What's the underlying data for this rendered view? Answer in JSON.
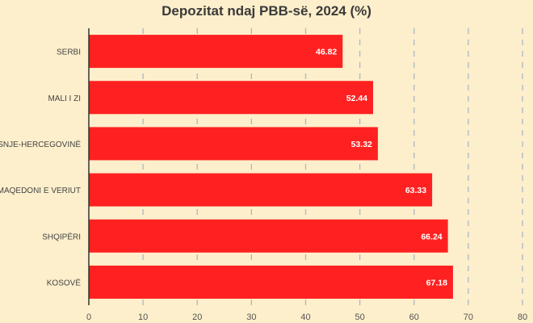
{
  "chart_data": {
    "type": "bar",
    "orientation": "horizontal",
    "title": "Depozitat ndaj PBB-së, 2024 (%)",
    "categories": [
      "SERBI",
      "MALI I ZI",
      "BOSNJE-HERCEGOVINË",
      "MAQEDONI E VERIUT",
      "SHQIPËRI",
      "KOSOVË"
    ],
    "values": [
      46.82,
      52.44,
      53.32,
      63.33,
      66.24,
      67.18
    ],
    "xlabel": "",
    "ylabel": "",
    "xlim": [
      0,
      80
    ],
    "xticks": [
      "0",
      "10",
      "20",
      "30",
      "40",
      "50",
      "60",
      "70",
      "80"
    ],
    "grid": "vertical dashed",
    "bar_color": "#ff2121",
    "label_color": "#ffffff"
  }
}
